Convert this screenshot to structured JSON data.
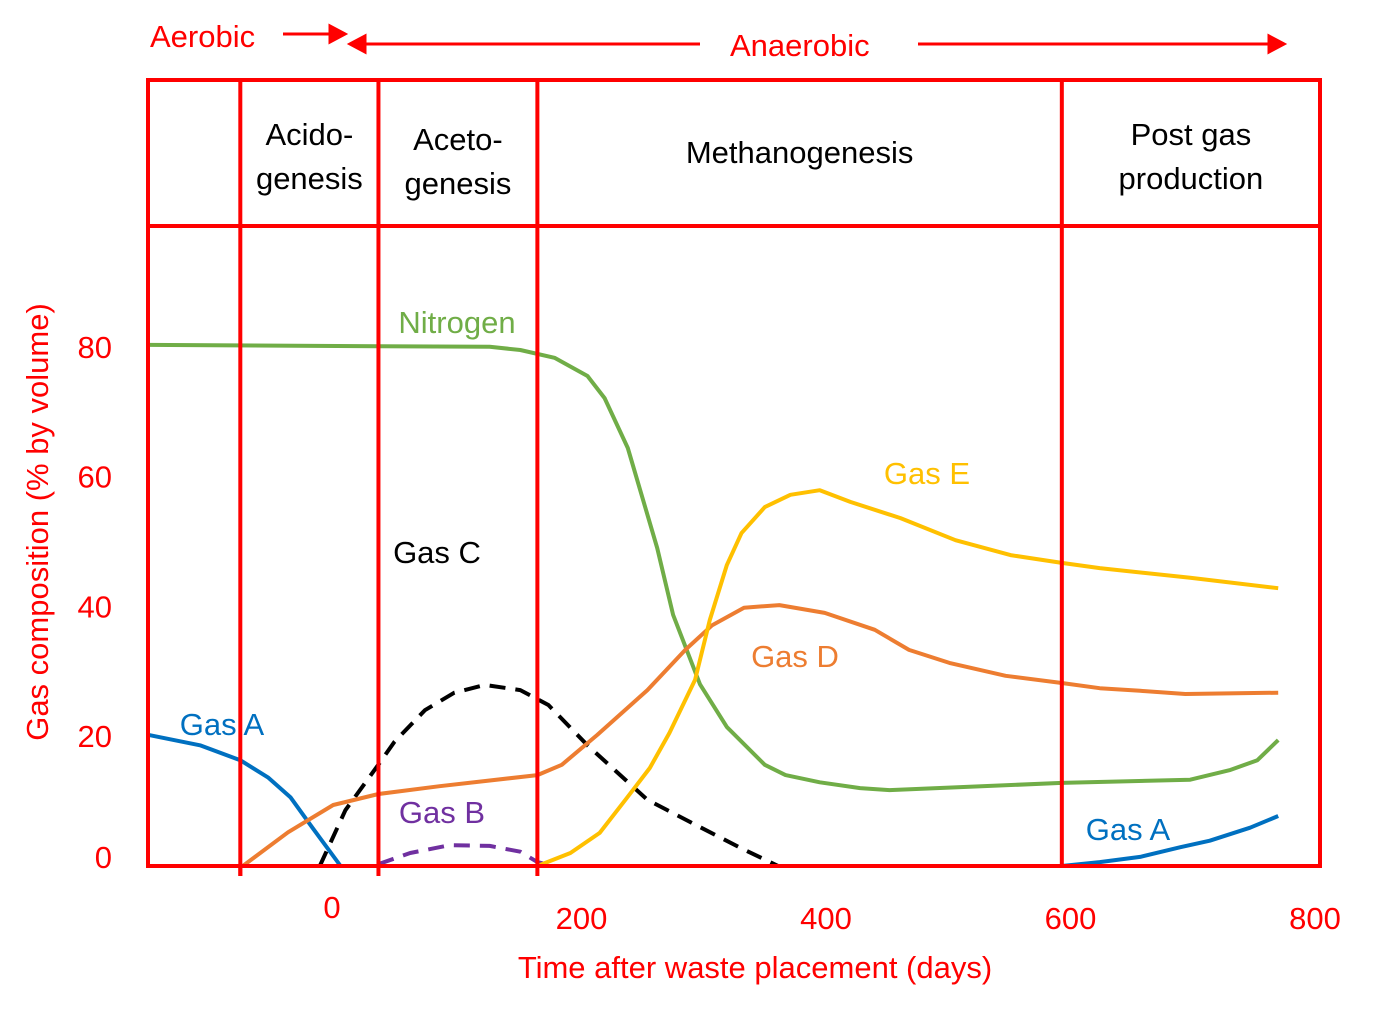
{
  "chart_data": {
    "type": "line",
    "title": "",
    "xlabel": "Time after waste placement (days)",
    "ylabel": "Gas composition (% by volume)",
    "xlim": [
      -150,
      800
    ],
    "ylim": [
      0,
      100
    ],
    "xticks": [
      0,
      200,
      400,
      600,
      800
    ],
    "yticks": [
      0,
      20,
      40,
      60,
      80
    ],
    "grid": false,
    "top_annotations": {
      "aerobic": "Aerobic",
      "anaerobic": "Anaerobic"
    },
    "phases": [
      {
        "label_lines": [
          "",
          ""
        ],
        "start": -150,
        "end": -75
      },
      {
        "label_lines": [
          "Acido-",
          "genesis"
        ],
        "start": -75,
        "end": 38
      },
      {
        "label_lines": [
          "Aceto-",
          "genesis"
        ],
        "start": 38,
        "end": 168
      },
      {
        "label_lines": [
          "Methanogenesis",
          ""
        ],
        "start": 168,
        "end": 597
      },
      {
        "label_lines": [
          "Post gas",
          "production"
        ],
        "start": 597,
        "end": 800
      }
    ],
    "series": [
      {
        "name": "Nitrogen",
        "color": "#70ad47",
        "dashed": false,
        "x": [
          -150,
          38,
          129,
          154,
          182,
          209,
          223,
          242,
          266,
          279,
          301,
          323,
          354,
          371,
          399,
          432,
          456,
          597,
          702,
          735,
          757,
          774
        ],
        "y": [
          80.3,
          80.1,
          80,
          79.5,
          78.3,
          75.5,
          72.1,
          64.4,
          49,
          38.7,
          28,
          21.4,
          15.6,
          14,
          12.9,
          12,
          11.7,
          12.8,
          13.3,
          14.8,
          16.3,
          19.4
        ]
      },
      {
        "name": "Gas A",
        "color": "#0070c0",
        "dashed": false,
        "x": [
          -150,
          -108,
          -75,
          -52,
          -34,
          -16,
          7,
          407
        ],
        "y": [
          20.2,
          18.6,
          16.3,
          13.6,
          10.6,
          5.9,
          0,
          0
        ]
      },
      {
        "name": "Gas A",
        "color": "#0070c0",
        "dashed": false,
        "x": [
          597,
          628,
          661,
          694,
          718,
          751,
          774
        ],
        "y": [
          0,
          0.6,
          1.4,
          2.9,
          3.9,
          5.9,
          7.7
        ]
      },
      {
        "name": "Gas B",
        "color": "#7030a0",
        "dashed": true,
        "x": [
          38,
          64,
          96,
          129,
          154,
          168,
          182
        ],
        "y": [
          0.3,
          2,
          3.2,
          3.1,
          2.2,
          0.6,
          0
        ]
      },
      {
        "name": "Gas C",
        "color": "#000000",
        "dashed": true,
        "x": [
          -10,
          11,
          39,
          51,
          76,
          100,
          125,
          154,
          177,
          209,
          258,
          301,
          334,
          365
        ],
        "y": [
          0,
          8.6,
          15.9,
          19.1,
          24,
          26.7,
          27.9,
          27.1,
          24.8,
          18.6,
          10.2,
          6,
          2.8,
          0
        ]
      },
      {
        "name": "Gas D",
        "color": "#ed7d31",
        "dashed": false,
        "x": [
          -73,
          -36,
          1,
          38,
          88,
          168,
          188,
          217,
          258,
          289,
          311,
          337,
          366,
          403,
          444,
          472,
          505,
          551,
          597,
          628,
          661,
          698,
          774
        ],
        "y": [
          0,
          5.2,
          9.4,
          11.1,
          12.3,
          14,
          15.6,
          20.2,
          27.1,
          33.3,
          37.1,
          39.8,
          40.2,
          39,
          36.4,
          33.3,
          31.3,
          29.3,
          28.2,
          27.4,
          27,
          26.5,
          26.7
        ]
      },
      {
        "name": "Gas E",
        "color": "#ffc000",
        "dashed": false,
        "x": [
          168,
          195,
          219,
          240,
          260,
          276,
          297,
          309,
          323,
          335,
          354,
          375,
          399,
          424,
          465,
          510,
          555,
          597,
          628,
          702,
          774
        ],
        "y": [
          0,
          2,
          5.1,
          10.2,
          15.1,
          20.5,
          28.7,
          37.9,
          46.4,
          51.3,
          55.3,
          57.2,
          57.9,
          56.1,
          53.6,
          50.2,
          47.9,
          46.7,
          45.9,
          44.4,
          42.8
        ]
      }
    ],
    "series_labels": [
      {
        "text": "Nitrogen",
        "color": "#70ad47"
      },
      {
        "text": "Gas A",
        "color": "#0070c0"
      },
      {
        "text": "Gas A",
        "color": "#0070c0"
      },
      {
        "text": "Gas B",
        "color": "#7030a0"
      },
      {
        "text": "Gas C",
        "color": "#000000"
      },
      {
        "text": "Gas D",
        "color": "#ed7d31"
      },
      {
        "text": "Gas E",
        "color": "#ffc000"
      }
    ],
    "axis_color": "#ff0000"
  }
}
